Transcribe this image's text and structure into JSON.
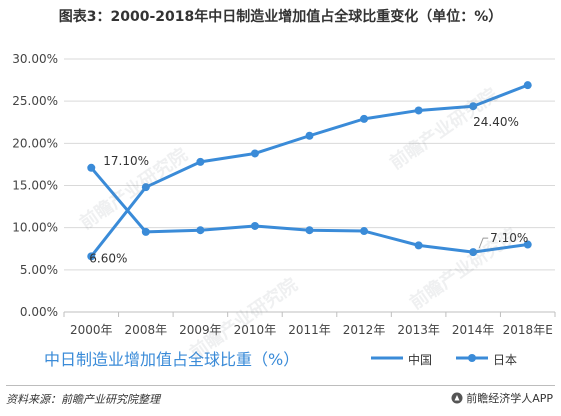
{
  "title": "图表3：2000-2018年中日制造业增加值占全球比重变化（单位：%）",
  "chart_data": {
    "type": "line",
    "title": "图表3：2000-2018年中日制造业增加值占全球比重变化（单位：%）",
    "subtitle": "中日制造业增加值占全球比重（%）",
    "categories": [
      "2000年",
      "2008年",
      "2009年",
      "2010年",
      "2011年",
      "2012年",
      "2013年",
      "2014年",
      "2018年E"
    ],
    "ylim": [
      0,
      30
    ],
    "yticks": [
      "0.00%",
      "5.00%",
      "10.00%",
      "15.00%",
      "20.00%",
      "25.00%",
      "30.00%"
    ],
    "ytick_values": [
      0,
      5,
      10,
      15,
      20,
      25,
      30
    ],
    "grid": true,
    "legend_position": "bottom-right",
    "series": [
      {
        "name": "中国",
        "marker": "none",
        "color": "#3a8bd8",
        "values": [
          6.6,
          14.8,
          17.8,
          18.8,
          20.9,
          22.9,
          23.9,
          24.4,
          26.9
        ]
      },
      {
        "name": "日本",
        "marker": "circle",
        "color": "#3a8bd8",
        "values": [
          17.1,
          9.5,
          9.7,
          10.2,
          9.7,
          9.6,
          7.9,
          7.1,
          8.0
        ]
      }
    ],
    "annotations": [
      {
        "text": "6.60%",
        "series": 0,
        "index": 0
      },
      {
        "text": "17.10%",
        "series": 1,
        "index": 0
      },
      {
        "text": "24.40%",
        "series": 0,
        "index": 7
      },
      {
        "text": "7.10%",
        "series": 1,
        "index": 7
      }
    ]
  },
  "source_note": "资料来源：前瞻产业研究院整理",
  "brand": "前瞻经济学人APP",
  "watermark": "前瞻产业研究院"
}
